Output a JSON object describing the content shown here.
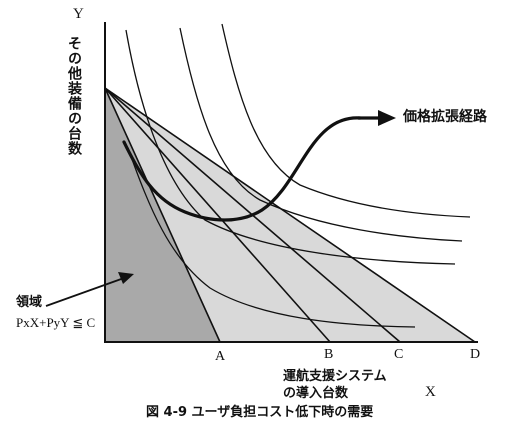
{
  "diagram": {
    "y_axis_letter": "Y",
    "x_axis_letter": "X",
    "y_axis_title": "その他装備の台数",
    "x_axis_title_line1": "運航支援システム",
    "x_axis_title_line2": "の導入台数",
    "points": [
      "A",
      "B",
      "C",
      "D"
    ],
    "expansion_path_label": "価格拡張経路",
    "region_label_line1": "領域",
    "region_label_line2": "PxX+PyY ≦ C",
    "caption": "図 4-9  ユーザ負担コスト低下時の需要",
    "colors": {
      "line": "#111111",
      "region_dark": "#a9a9a9",
      "region_light": "#d9d9d9",
      "background": "#ffffff"
    }
  }
}
